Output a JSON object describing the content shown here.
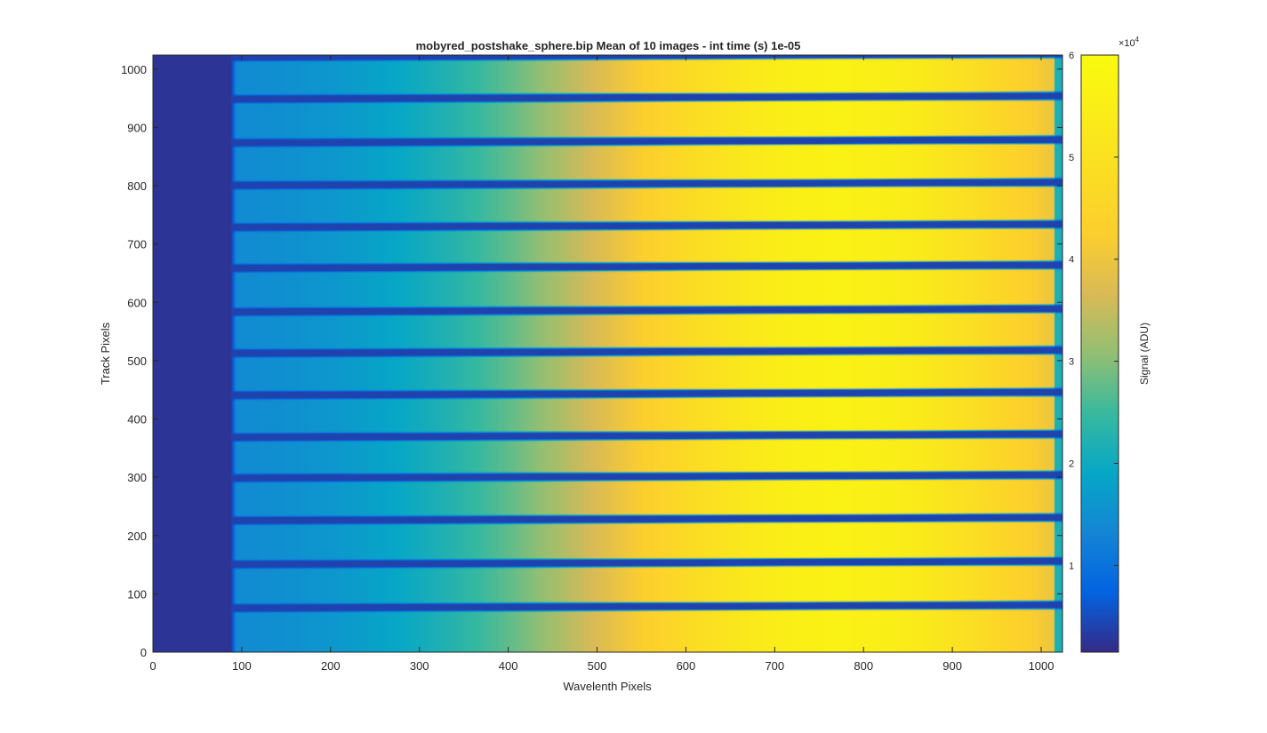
{
  "chart_data": {
    "type": "heatmap",
    "title": "mobyred_postshake_sphere.bip  Mean of 10 images - int time (s) 1e-05",
    "xlabel": "Wavelenth Pixels",
    "ylabel": "Track Pixels",
    "xlim": [
      0,
      1024
    ],
    "ylim": [
      0,
      1024
    ],
    "xticks": [
      0,
      100,
      200,
      300,
      400,
      500,
      600,
      700,
      800,
      900,
      1000
    ],
    "yticks": [
      0,
      100,
      200,
      300,
      400,
      500,
      600,
      700,
      800,
      900,
      1000
    ],
    "colormap": "parula",
    "colorbar": {
      "label": "Signal (ADU)",
      "range": [
        1500,
        60000
      ],
      "ticks": [
        1,
        2,
        3,
        4,
        5,
        6
      ],
      "exponent_label": "×10",
      "exponent_power": "4"
    },
    "signal_model": {
      "dark_level": 2500,
      "illumination_start_x": 88,
      "edge_start_x": 1015,
      "peak_x": 770,
      "peak_value": 56000,
      "low_value": 13000
    },
    "dark_gaps_track_pixels": [
      75,
      150,
      225,
      298,
      368,
      440,
      512,
      583,
      658,
      728,
      800,
      873,
      948,
      1020
    ]
  }
}
